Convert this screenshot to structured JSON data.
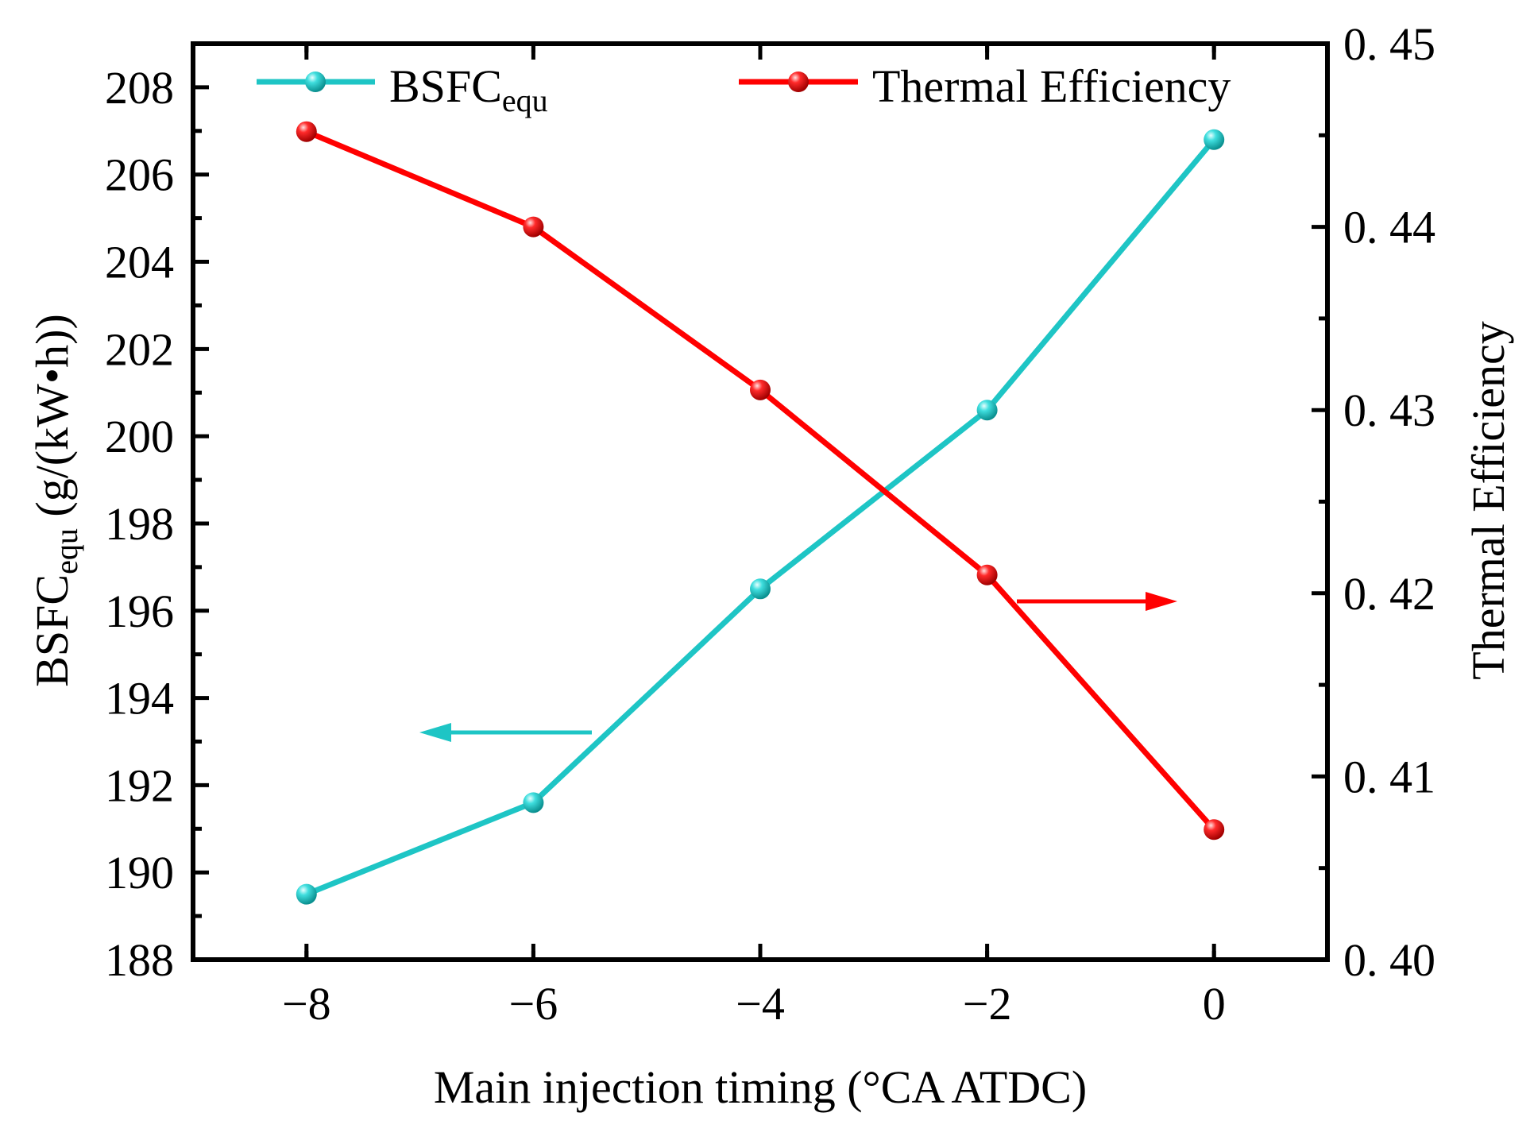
{
  "chart_data": {
    "type": "line",
    "x": [
      -8,
      -6,
      -4,
      -2,
      0
    ],
    "xlabel": "Main injection timing (°CA ATDC)",
    "xlim": [
      -9,
      1
    ],
    "xticks": [
      -8,
      -6,
      -4,
      -2,
      0
    ],
    "xtick_labels": [
      "−8",
      "−6",
      "−4",
      "−2",
      "0"
    ],
    "y_left": {
      "label_main": "BSFC",
      "label_sub": "equ",
      "label_unit": " (g/(kW•h))",
      "lim": [
        188,
        209
      ],
      "ticks": [
        188,
        190,
        192,
        194,
        196,
        198,
        200,
        202,
        204,
        206,
        208
      ],
      "tick_labels": [
        "188",
        "190",
        "192",
        "194",
        "196",
        "198",
        "200",
        "202",
        "204",
        "206",
        "208"
      ]
    },
    "y_right": {
      "label": "Thermal Efficiency",
      "lim": [
        0.4,
        0.45
      ],
      "ticks": [
        0.4,
        0.41,
        0.42,
        0.43,
        0.44,
        0.45
      ],
      "tick_labels": [
        "0. 40",
        "0. 41",
        "0. 42",
        "0. 43",
        "0. 44",
        "0. 45"
      ]
    },
    "series": [
      {
        "name": "BSFC",
        "name_sub": "equ",
        "axis": "left",
        "color": "#1ec5c5",
        "values": [
          189.5,
          191.6,
          196.5,
          200.6,
          206.8
        ]
      },
      {
        "name": "Thermal Efficiency",
        "name_sub": "",
        "axis": "right",
        "color": "#ff0000",
        "values": [
          0.4452,
          0.44,
          0.4311,
          0.421,
          0.4071
        ]
      }
    ],
    "legend_placement": "top",
    "grid": false,
    "annotations": [
      {
        "type": "arrow",
        "series": "BSFC",
        "direction": "left",
        "meaning": "left axis"
      },
      {
        "type": "arrow",
        "series": "Thermal Efficiency",
        "direction": "right",
        "meaning": "right axis"
      }
    ]
  }
}
